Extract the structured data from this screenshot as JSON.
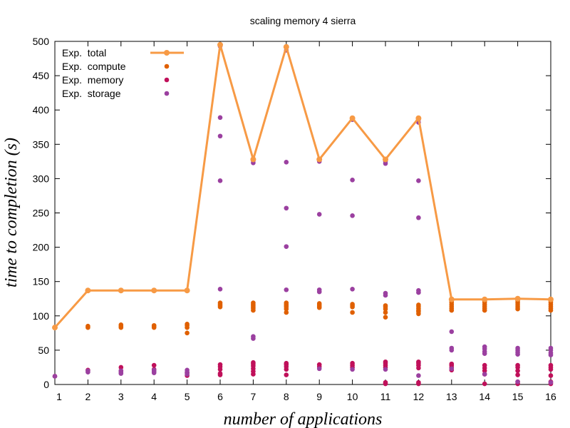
{
  "chart_data": {
    "type": "scatter",
    "title": "scaling memory 4 sierra",
    "xlabel": "number of applications",
    "ylabel": "time to completion (s)",
    "xlim": [
      1,
      16
    ],
    "ylim": [
      0,
      500
    ],
    "x_ticks": [
      1,
      2,
      3,
      4,
      5,
      6,
      7,
      8,
      9,
      10,
      11,
      12,
      13,
      14,
      15,
      16
    ],
    "y_ticks": [
      0,
      50,
      100,
      150,
      200,
      250,
      300,
      350,
      400,
      450,
      500
    ],
    "grid": false,
    "legend_position": "top-left",
    "series": [
      {
        "name": "Exp.  total",
        "mark": "line-points",
        "color": "#f79a45",
        "x": [
          1,
          2,
          3,
          4,
          5,
          6,
          7,
          8,
          9,
          10,
          11,
          12,
          13,
          14,
          15,
          16
        ],
        "y": [
          83,
          137,
          137,
          137,
          137,
          495,
          328,
          492,
          328,
          388,
          328,
          388,
          124,
          124,
          125,
          124
        ]
      },
      {
        "name": "Exp.  compute",
        "mark": "points",
        "color": "#e06000",
        "points": [
          [
            1,
            83
          ],
          [
            2,
            83
          ],
          [
            2,
            85
          ],
          [
            3,
            83
          ],
          [
            3,
            85
          ],
          [
            3,
            87
          ],
          [
            4,
            83
          ],
          [
            4,
            85
          ],
          [
            4,
            86
          ],
          [
            5,
            75
          ],
          [
            5,
            83
          ],
          [
            5,
            86
          ],
          [
            5,
            88
          ],
          [
            6,
            113
          ],
          [
            6,
            115
          ],
          [
            6,
            117
          ],
          [
            6,
            119
          ],
          [
            7,
            108
          ],
          [
            7,
            111
          ],
          [
            7,
            113
          ],
          [
            7,
            115
          ],
          [
            7,
            117
          ],
          [
            7,
            119
          ],
          [
            8,
            105
          ],
          [
            8,
            110
          ],
          [
            8,
            113
          ],
          [
            8,
            115
          ],
          [
            8,
            117
          ],
          [
            8,
            119
          ],
          [
            9,
            112
          ],
          [
            9,
            114
          ],
          [
            9,
            116
          ],
          [
            9,
            118
          ],
          [
            10,
            105
          ],
          [
            10,
            113
          ],
          [
            10,
            115
          ],
          [
            10,
            117
          ],
          [
            11,
            98
          ],
          [
            11,
            105
          ],
          [
            11,
            110
          ],
          [
            11,
            113
          ],
          [
            11,
            115
          ],
          [
            12,
            103
          ],
          [
            12,
            106
          ],
          [
            12,
            108
          ],
          [
            12,
            111
          ],
          [
            12,
            114
          ],
          [
            12,
            116
          ],
          [
            13,
            108
          ],
          [
            13,
            111
          ],
          [
            13,
            114
          ],
          [
            13,
            117
          ],
          [
            13,
            120
          ],
          [
            13,
            123
          ],
          [
            14,
            108
          ],
          [
            14,
            111
          ],
          [
            14,
            114
          ],
          [
            14,
            117
          ],
          [
            14,
            120
          ],
          [
            14,
            122
          ],
          [
            15,
            110
          ],
          [
            15,
            113
          ],
          [
            15,
            116
          ],
          [
            15,
            119
          ],
          [
            15,
            122
          ],
          [
            16,
            108
          ],
          [
            16,
            111
          ],
          [
            16,
            114
          ],
          [
            16,
            117
          ],
          [
            16,
            120
          ],
          [
            16,
            123
          ]
        ]
      },
      {
        "name": "Exp.  memory",
        "mark": "points",
        "color": "#c0105a",
        "points": [
          [
            1,
            12
          ],
          [
            2,
            21
          ],
          [
            3,
            25
          ],
          [
            3,
            20
          ],
          [
            4,
            28
          ],
          [
            4,
            22
          ],
          [
            5,
            13
          ],
          [
            5,
            17
          ],
          [
            6,
            14
          ],
          [
            6,
            16
          ],
          [
            6,
            22
          ],
          [
            6,
            26
          ],
          [
            6,
            29
          ],
          [
            7,
            15
          ],
          [
            7,
            19
          ],
          [
            7,
            23
          ],
          [
            7,
            27
          ],
          [
            7,
            30
          ],
          [
            7,
            32
          ],
          [
            8,
            14
          ],
          [
            8,
            22
          ],
          [
            8,
            26
          ],
          [
            8,
            29
          ],
          [
            8,
            31
          ],
          [
            9,
            26
          ],
          [
            9,
            29
          ],
          [
            10,
            25
          ],
          [
            10,
            28
          ],
          [
            10,
            31
          ],
          [
            11,
            1
          ],
          [
            11,
            3
          ],
          [
            11,
            25
          ],
          [
            11,
            28
          ],
          [
            11,
            31
          ],
          [
            11,
            33
          ],
          [
            12,
            1
          ],
          [
            12,
            3
          ],
          [
            12,
            24
          ],
          [
            12,
            28
          ],
          [
            12,
            31
          ],
          [
            12,
            33
          ],
          [
            13,
            21
          ],
          [
            13,
            25
          ],
          [
            13,
            28
          ],
          [
            13,
            30
          ],
          [
            14,
            1
          ],
          [
            14,
            15
          ],
          [
            14,
            20
          ],
          [
            14,
            24
          ],
          [
            14,
            28
          ],
          [
            15,
            1
          ],
          [
            15,
            4
          ],
          [
            15,
            14
          ],
          [
            15,
            20
          ],
          [
            15,
            25
          ],
          [
            15,
            28
          ],
          [
            16,
            1
          ],
          [
            16,
            4
          ],
          [
            16,
            13
          ],
          [
            16,
            22
          ],
          [
            16,
            25
          ],
          [
            16,
            28
          ]
        ]
      },
      {
        "name": "Exp.  storage",
        "mark": "points",
        "color": "#9b40a0",
        "points": [
          [
            1,
            12
          ],
          [
            2,
            18
          ],
          [
            2,
            20
          ],
          [
            3,
            16
          ],
          [
            3,
            18
          ],
          [
            3,
            20
          ],
          [
            4,
            17
          ],
          [
            4,
            19
          ],
          [
            4,
            21
          ],
          [
            5,
            15
          ],
          [
            5,
            18
          ],
          [
            5,
            21
          ],
          [
            6,
            493
          ],
          [
            6,
            389
          ],
          [
            6,
            362
          ],
          [
            6,
            297
          ],
          [
            6,
            139
          ],
          [
            7,
            326
          ],
          [
            7,
            323
          ],
          [
            7,
            70
          ],
          [
            7,
            67
          ],
          [
            8,
            487
          ],
          [
            8,
            324
          ],
          [
            8,
            257
          ],
          [
            8,
            201
          ],
          [
            8,
            138
          ],
          [
            9,
            325
          ],
          [
            9,
            248
          ],
          [
            9,
            138
          ],
          [
            9,
            135
          ],
          [
            9,
            23
          ],
          [
            10,
            386
          ],
          [
            10,
            298
          ],
          [
            10,
            246
          ],
          [
            10,
            139
          ],
          [
            10,
            22
          ],
          [
            11,
            325
          ],
          [
            11,
            322
          ],
          [
            11,
            133
          ],
          [
            11,
            130
          ],
          [
            11,
            22
          ],
          [
            12,
            386
          ],
          [
            12,
            382
          ],
          [
            12,
            297
          ],
          [
            12,
            243
          ],
          [
            12,
            137
          ],
          [
            12,
            134
          ],
          [
            12,
            13
          ],
          [
            13,
            77
          ],
          [
            13,
            53
          ],
          [
            13,
            50
          ],
          [
            13,
            23
          ],
          [
            14,
            55
          ],
          [
            14,
            52
          ],
          [
            14,
            48
          ],
          [
            14,
            45
          ],
          [
            14,
            15
          ],
          [
            15,
            53
          ],
          [
            15,
            50
          ],
          [
            15,
            47
          ],
          [
            15,
            44
          ],
          [
            15,
            4
          ],
          [
            16,
            53
          ],
          [
            16,
            50
          ],
          [
            16,
            46
          ],
          [
            16,
            43
          ],
          [
            16,
            3
          ]
        ]
      }
    ]
  }
}
